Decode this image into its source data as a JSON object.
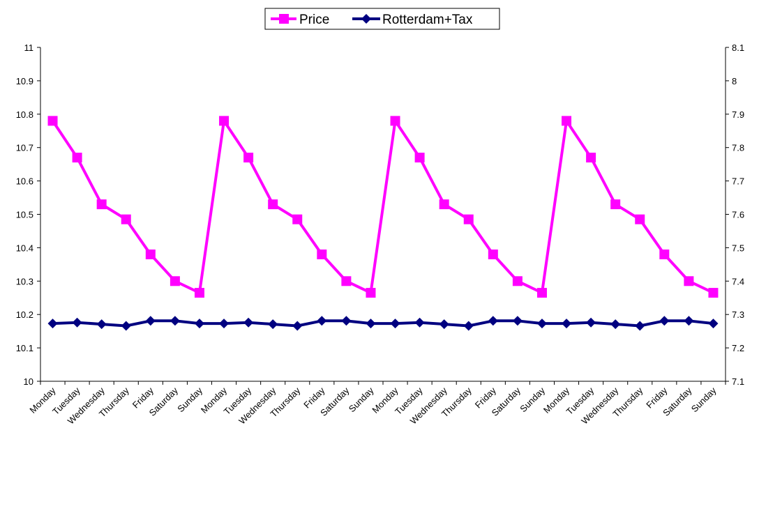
{
  "chart_data": {
    "type": "line",
    "categories": [
      "Monday",
      "Tuesday",
      "Wednesday",
      "Thursday",
      "Friday",
      "Saturday",
      "Sunday",
      "Monday",
      "Tuesday",
      "Wednesday",
      "Thursday",
      "Friday",
      "Saturday",
      "Sunday",
      "Monday",
      "Tuesday",
      "Wednesday",
      "Thursday",
      "Friday",
      "Saturday",
      "Sunday",
      "Monday",
      "Tuesday",
      "Wednesday",
      "Thursday",
      "Friday",
      "Saturday",
      "Sunday"
    ],
    "y_left": {
      "ylim": [
        10,
        11
      ],
      "ticks": [
        "10",
        "10.1",
        "10.2",
        "10.3",
        "10.4",
        "10.5",
        "10.6",
        "10.7",
        "10.8",
        "10.9",
        "11"
      ]
    },
    "y_right": {
      "ylim": [
        7.1,
        8.1
      ],
      "ticks": [
        "7.1",
        "7.2",
        "7.3",
        "7.4",
        "7.5",
        "7.6",
        "7.7",
        "7.8",
        "7.9",
        "8",
        "8.1"
      ]
    },
    "grid": false,
    "legend_position": "top-center",
    "series": [
      {
        "name": "Price",
        "axis": "left",
        "color": "#ff00ff",
        "marker": "square",
        "values": [
          10.78,
          10.67,
          10.53,
          10.485,
          10.38,
          10.3,
          10.265,
          10.78,
          10.67,
          10.53,
          10.485,
          10.38,
          10.3,
          10.265,
          10.78,
          10.67,
          10.53,
          10.485,
          10.38,
          10.3,
          10.265,
          10.78,
          10.67,
          10.53,
          10.485,
          10.38,
          10.3,
          10.265
        ]
      },
      {
        "name": "Rotterdam+Tax",
        "axis": "right",
        "color": "#000080",
        "marker": "diamond",
        "values": [
          7.273,
          7.276,
          7.271,
          7.266,
          7.281,
          7.281,
          7.273,
          7.273,
          7.276,
          7.271,
          7.266,
          7.281,
          7.281,
          7.273,
          7.273,
          7.276,
          7.271,
          7.266,
          7.281,
          7.281,
          7.273,
          7.273,
          7.276,
          7.271,
          7.266,
          7.281,
          7.281,
          7.273
        ]
      }
    ]
  }
}
